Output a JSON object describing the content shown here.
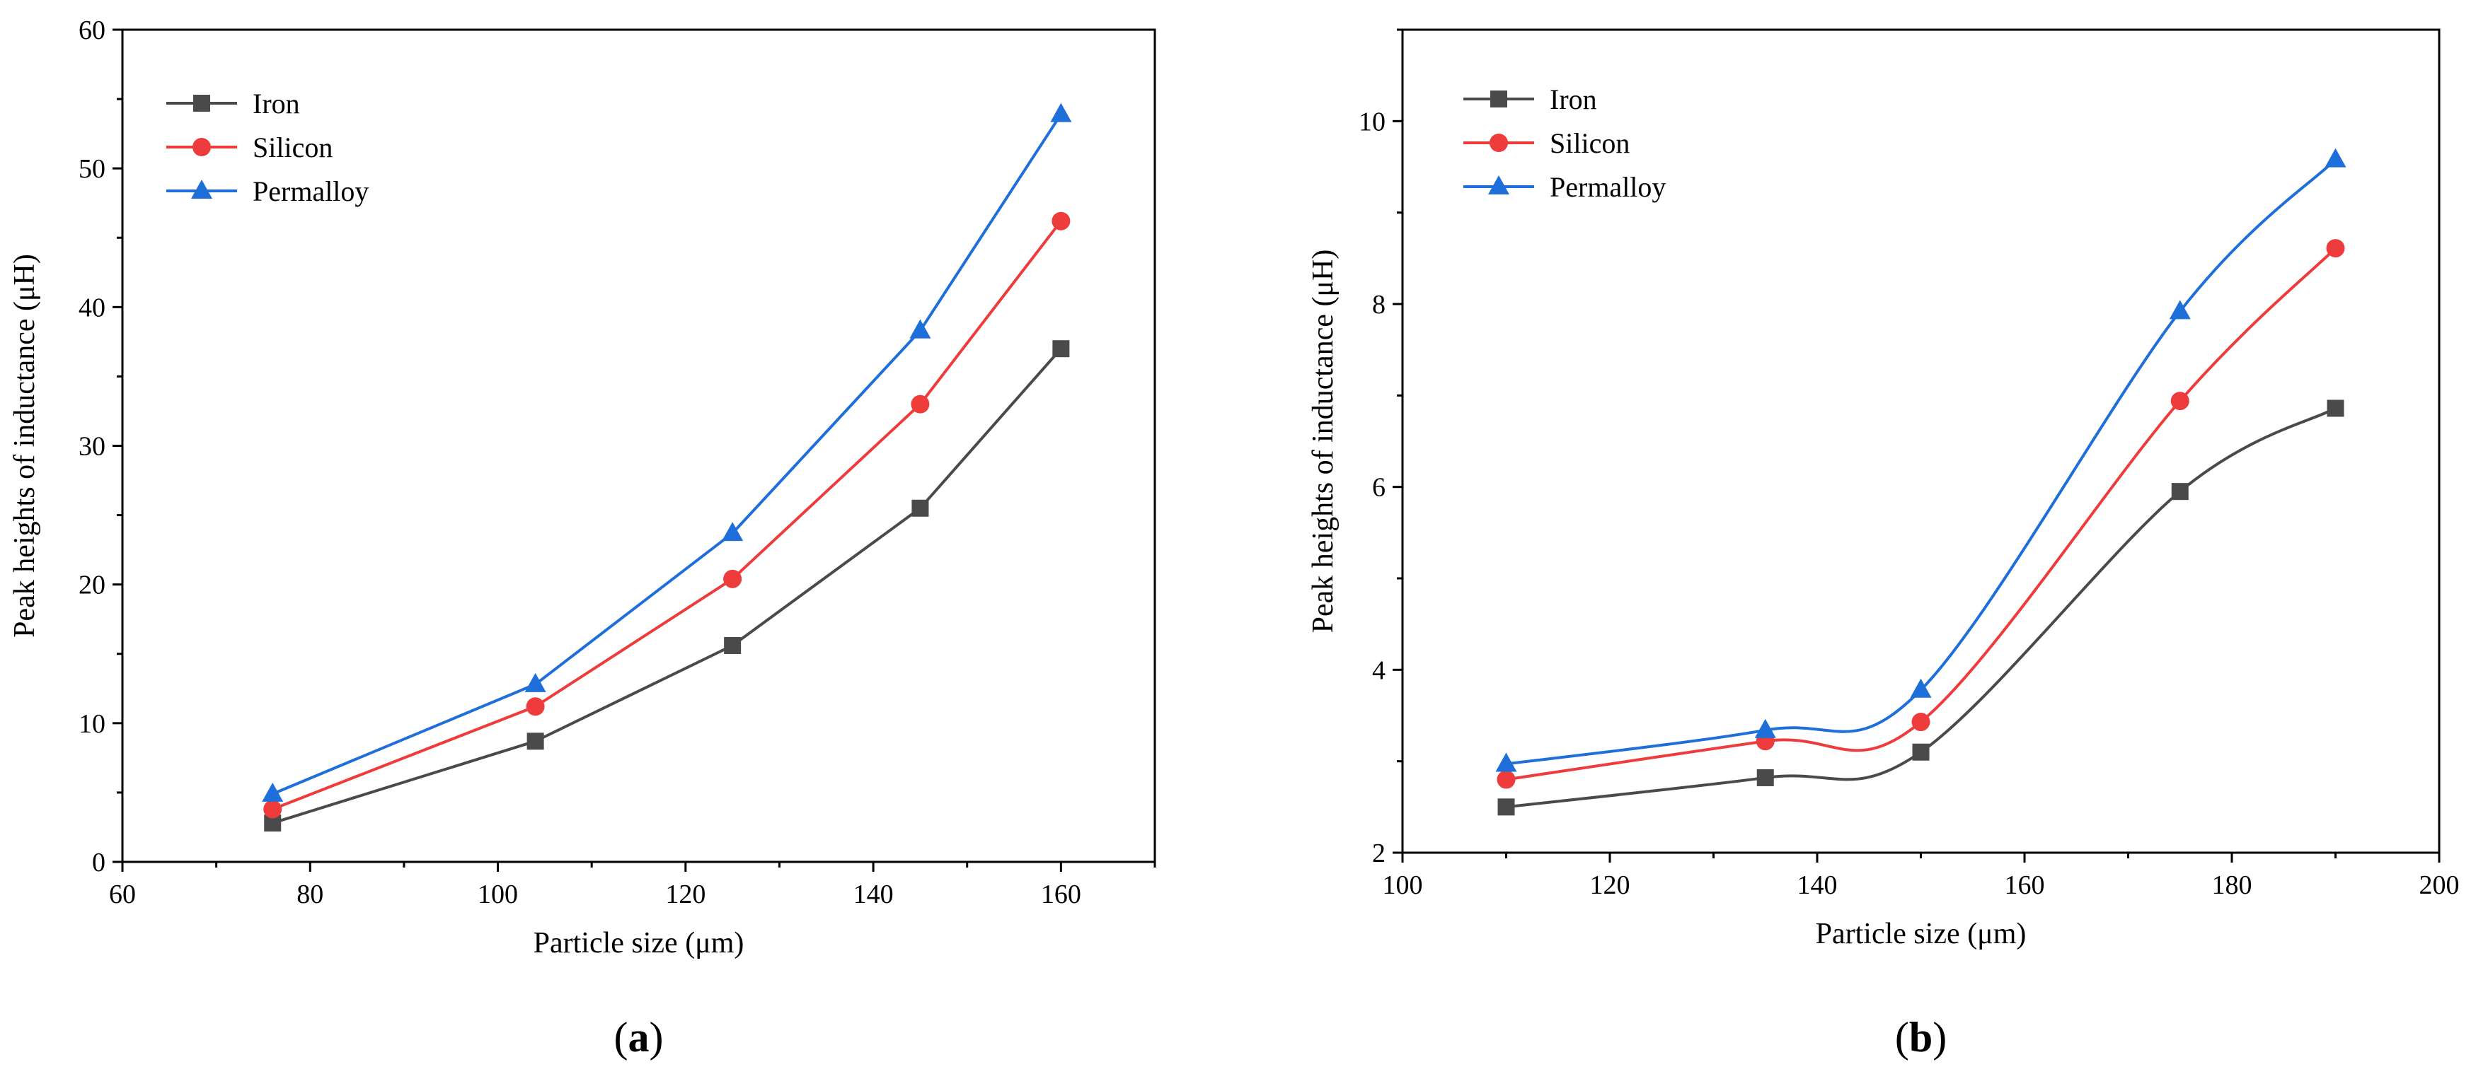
{
  "colors": {
    "Iron": "#4a4a4a",
    "Silicon": "#ee3b3b",
    "Permalloy": "#1e6fd9"
  },
  "chart_data": [
    {
      "type": "line",
      "panel_label": {
        "open": "(",
        "letter": "a",
        "close": ")"
      },
      "xlabel": "Particle size (μm)",
      "ylabel": "Peak heights of inductance (μH)",
      "xlim": [
        60,
        170
      ],
      "ylim": [
        0,
        60
      ],
      "xticks": [
        60,
        80,
        100,
        120,
        140,
        160
      ],
      "yticks": [
        0,
        10,
        20,
        30,
        40,
        50,
        60
      ],
      "legend_position": "top-left",
      "curve": "straight",
      "x": [
        76,
        104,
        125,
        145,
        160
      ],
      "series": [
        {
          "name": "Iron",
          "marker": "square",
          "values": [
            2.8,
            8.7,
            15.6,
            25.5,
            37.0
          ]
        },
        {
          "name": "Silicon",
          "marker": "circle",
          "values": [
            3.8,
            11.2,
            20.4,
            33.0,
            46.2
          ]
        },
        {
          "name": "Permalloy",
          "marker": "triangle",
          "values": [
            4.9,
            12.8,
            23.7,
            38.3,
            53.9
          ]
        }
      ]
    },
    {
      "type": "line",
      "panel_label": {
        "open": "(",
        "letter": "b",
        "close": ")"
      },
      "xlabel": "Particle size (μm)",
      "ylabel": "Peak heights of inductance (μH)",
      "xlim": [
        100,
        200
      ],
      "ylim": [
        2,
        11
      ],
      "xticks": [
        100,
        120,
        140,
        160,
        180,
        200
      ],
      "yticks": [
        2,
        4,
        6,
        8,
        10
      ],
      "legend_position": "top-left",
      "curve": "smooth",
      "x": [
        110,
        135,
        150,
        175,
        190
      ],
      "series": [
        {
          "name": "Iron",
          "marker": "square",
          "values": [
            2.5,
            2.82,
            3.1,
            5.95,
            6.86
          ]
        },
        {
          "name": "Silicon",
          "marker": "circle",
          "values": [
            2.8,
            3.22,
            3.43,
            6.94,
            8.61
          ]
        },
        {
          "name": "Permalloy",
          "marker": "triangle",
          "values": [
            2.97,
            3.34,
            3.78,
            7.92,
            9.58
          ]
        }
      ]
    }
  ]
}
